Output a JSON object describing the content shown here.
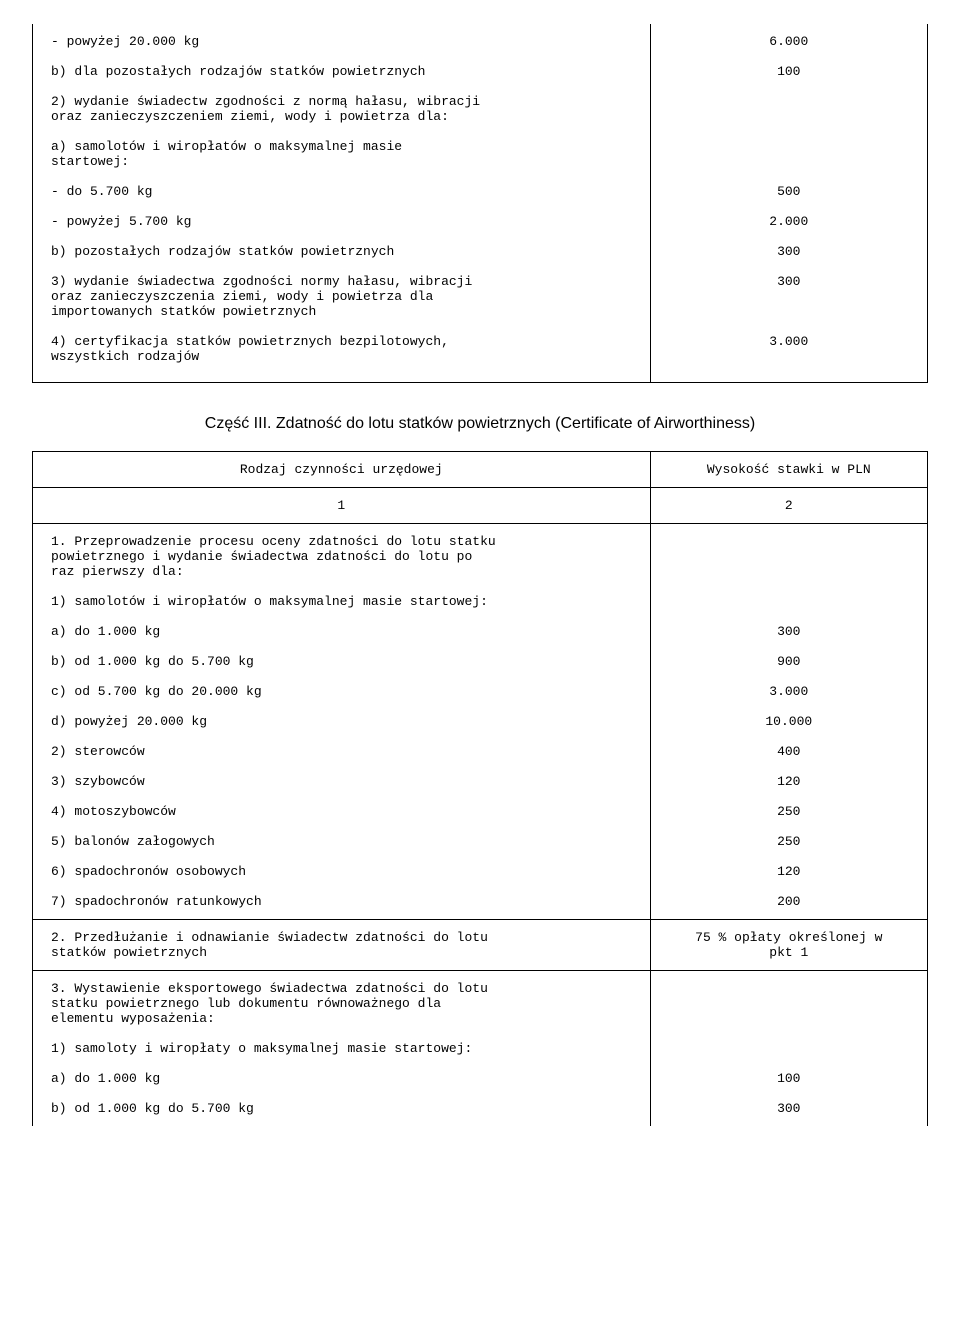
{
  "top": {
    "r1": "- powyżej 20.000 kg",
    "r1v": "6.000",
    "r2": "b) dla pozostałych rodzajów statków powietrznych",
    "r2v": "100",
    "r3a": "2) wydanie świadectw zgodności z normą hałasu, wibracji",
    "r3b": "oraz zanieczyszczeniem ziemi, wody i powietrza dla:",
    "r4a": "a) samolotów i wiropłatów o maksymalnej masie",
    "r4b": "startowej:",
    "r5": "- do 5.700 kg",
    "r5v": "500",
    "r6": "- powyżej 5.700 kg",
    "r6v": "2.000",
    "r7": "b) pozostałych rodzajów statków powietrznych",
    "r7v": "300",
    "r8a": "3) wydanie świadectwa zgodności normy hałasu, wibracji",
    "r8b": "oraz zanieczyszczenia ziemi, wody i powietrza dla",
    "r8c": "importowanych statków powietrznych",
    "r8v": "300",
    "r9a": "4) certyfikacja statków powietrznych bezpilotowych,",
    "r9b": "wszystkich rodzajów",
    "r9v": "3.000"
  },
  "heading": "Część III. Zdatność do lotu statków powietrznych (Certificate of Airworthiness)",
  "headers": {
    "c1": "Rodzaj czynności urzędowej",
    "c2": "Wysokość stawki w PLN"
  },
  "numrow": {
    "c1": "1",
    "c2": "2"
  },
  "row1": {
    "p1a": "1. Przeprowadzenie procesu oceny zdatności do lotu statku",
    "p1b": "powietrznego i wydanie świadectwa zdatności do lotu po",
    "p1c": "raz pierwszy dla:",
    "p2": "1) samolotów i wiropłatów o maksymalnej masie startowej:",
    "a": "a) do 1.000 kg",
    "av": "300",
    "b": "b) od 1.000 kg do 5.700 kg",
    "bv": "900",
    "c": "c) od 5.700 kg do 20.000 kg",
    "cv": "3.000",
    "d": "d) powyżej 20.000 kg",
    "dv": "10.000",
    "s2": "2) sterowców",
    "s2v": "400",
    "s3": "3) szybowców",
    "s3v": "120",
    "s4": "4) motoszybowców",
    "s4v": "250",
    "s5": "5) balonów załogowych",
    "s5v": "250",
    "s6": "6) spadochronów osobowych",
    "s6v": "120",
    "s7": "7) spadochronów ratunkowych",
    "s7v": "200"
  },
  "row2": {
    "la": "2. Przedłużanie i odnawianie świadectw zdatności do lotu",
    "lb": "statków powietrznych",
    "ra": "75 % opłaty określonej w",
    "rb": "pkt 1"
  },
  "row3": {
    "p1a": "3. Wystawienie eksportowego świadectwa zdatności do lotu",
    "p1b": "statku powietrznego lub dokumentu równoważnego dla",
    "p1c": "elementu wyposażenia:",
    "p2": "1) samoloty i wiropłaty o maksymalnej masie startowej:",
    "a": "a) do 1.000 kg",
    "av": "100",
    "b": "b) od 1.000 kg do 5.700 kg",
    "bv": "300"
  }
}
